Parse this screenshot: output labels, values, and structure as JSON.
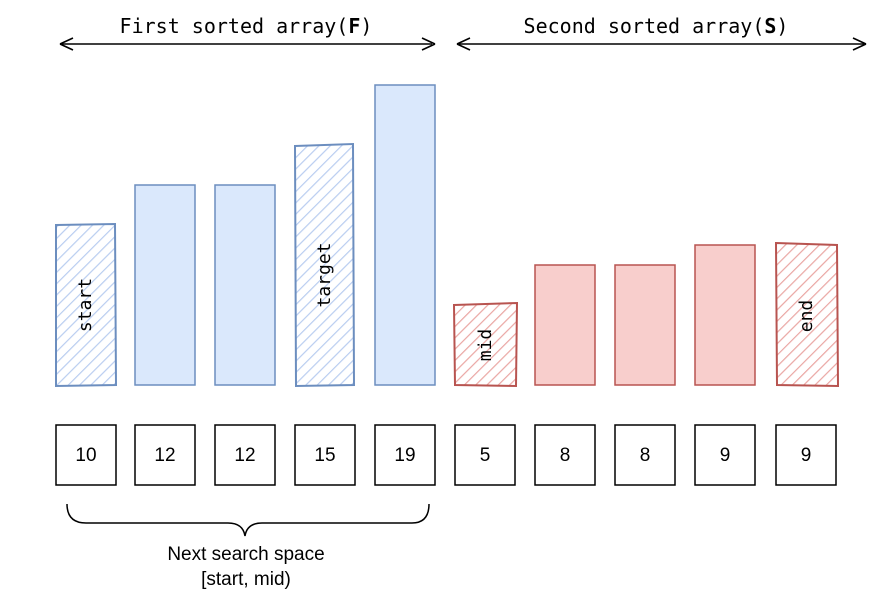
{
  "headers": {
    "first": {
      "text": "First sorted array",
      "bold": "F"
    },
    "second": {
      "text": "Second sorted array",
      "bold": "S"
    }
  },
  "colors": {
    "blue_fill": "#dae8fc",
    "blue_stroke": "#6c8ebf",
    "red_fill": "#f8cecc",
    "red_stroke": "#b85450",
    "ink": "#000000"
  },
  "first_array": {
    "values": [
      "10",
      "12",
      "12",
      "15",
      "19"
    ],
    "labels": [
      "start",
      "",
      "",
      "target",
      ""
    ]
  },
  "second_array": {
    "values": [
      "5",
      "8",
      "8",
      "9",
      "9"
    ],
    "labels": [
      "mid",
      "",
      "",
      "",
      "end"
    ]
  },
  "brace_caption": {
    "line1": "Next search space",
    "line2": "[start, mid)"
  }
}
